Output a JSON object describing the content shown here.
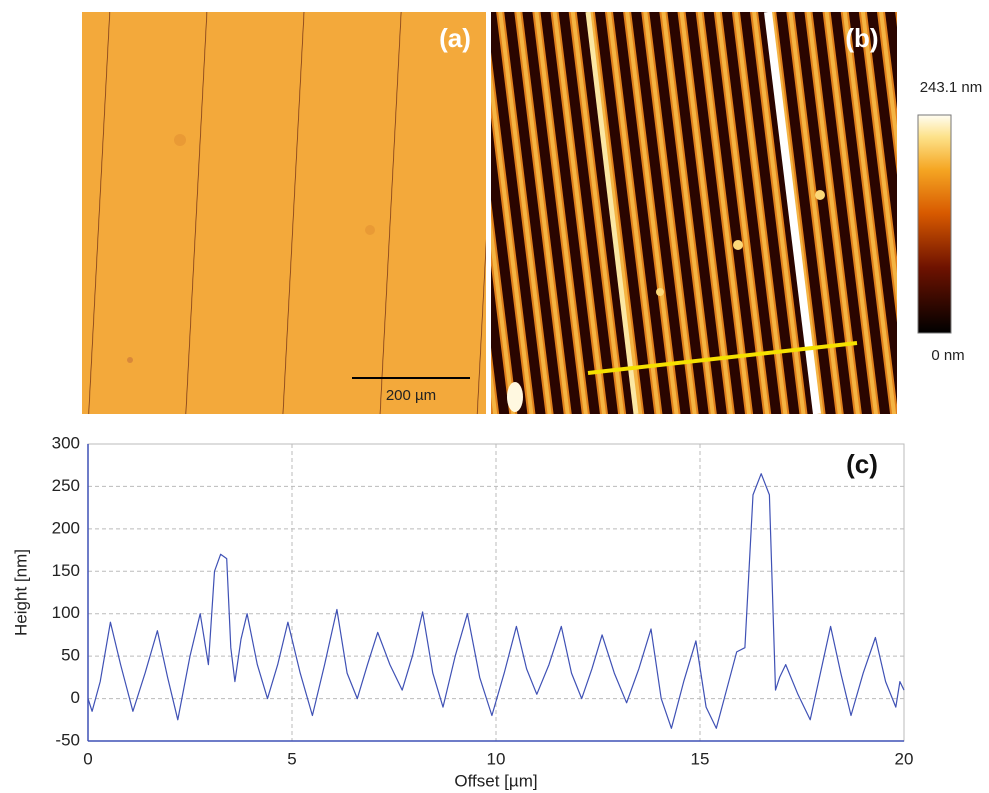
{
  "panels": {
    "a_label": "(a)",
    "scale_bar": "200 µm",
    "b_label": "(b)",
    "colorbar_max": "243.1 nm",
    "colorbar_min": "0 nm"
  },
  "chart_data": {
    "type": "line",
    "annotation": "(c)",
    "x_label": "Offset [µm]",
    "y_label": "Height [nm]",
    "x": [
      0,
      0.1,
      0.3,
      0.55,
      0.8,
      1.1,
      1.4,
      1.7,
      1.95,
      2.2,
      2.5,
      2.75,
      2.95,
      3.1,
      3.25,
      3.4,
      3.5,
      3.6,
      3.75,
      3.9,
      4.15,
      4.4,
      4.65,
      4.9,
      5.2,
      5.5,
      5.8,
      6.1,
      6.35,
      6.6,
      6.85,
      7.1,
      7.4,
      7.7,
      7.95,
      8.2,
      8.45,
      8.7,
      9.0,
      9.3,
      9.6,
      9.9,
      10.2,
      10.5,
      10.75,
      11.0,
      11.3,
      11.6,
      11.85,
      12.1,
      12.35,
      12.6,
      12.9,
      13.2,
      13.5,
      13.8,
      14.05,
      14.3,
      14.6,
      14.9,
      15.15,
      15.4,
      15.65,
      15.9,
      16.1,
      16.3,
      16.5,
      16.7,
      16.85,
      16.95,
      17.1,
      17.4,
      17.7,
      17.95,
      18.2,
      18.45,
      18.7,
      19.0,
      19.3,
      19.55,
      19.8,
      19.9,
      20
    ],
    "values": [
      0,
      -15,
      20,
      90,
      40,
      -15,
      30,
      80,
      25,
      -25,
      50,
      100,
      40,
      150,
      170,
      165,
      60,
      20,
      70,
      100,
      40,
      0,
      40,
      90,
      30,
      -20,
      40,
      105,
      30,
      0,
      40,
      78,
      40,
      10,
      50,
      102,
      30,
      -10,
      50,
      100,
      25,
      -20,
      30,
      85,
      35,
      5,
      40,
      85,
      30,
      0,
      35,
      75,
      30,
      -5,
      35,
      82,
      0,
      -35,
      20,
      68,
      -10,
      -35,
      10,
      55,
      60,
      240,
      265,
      240,
      10,
      25,
      40,
      5,
      -25,
      30,
      85,
      30,
      -20,
      30,
      72,
      20,
      -10,
      20,
      10
    ],
    "color": "#3f51b5",
    "xlim": [
      0,
      20
    ],
    "xticks": [
      0,
      5,
      10,
      15,
      20
    ],
    "ylim": [
      -50,
      300
    ],
    "yticks": [
      -50,
      0,
      50,
      100,
      150,
      200,
      250,
      300
    ],
    "grid": true
  }
}
